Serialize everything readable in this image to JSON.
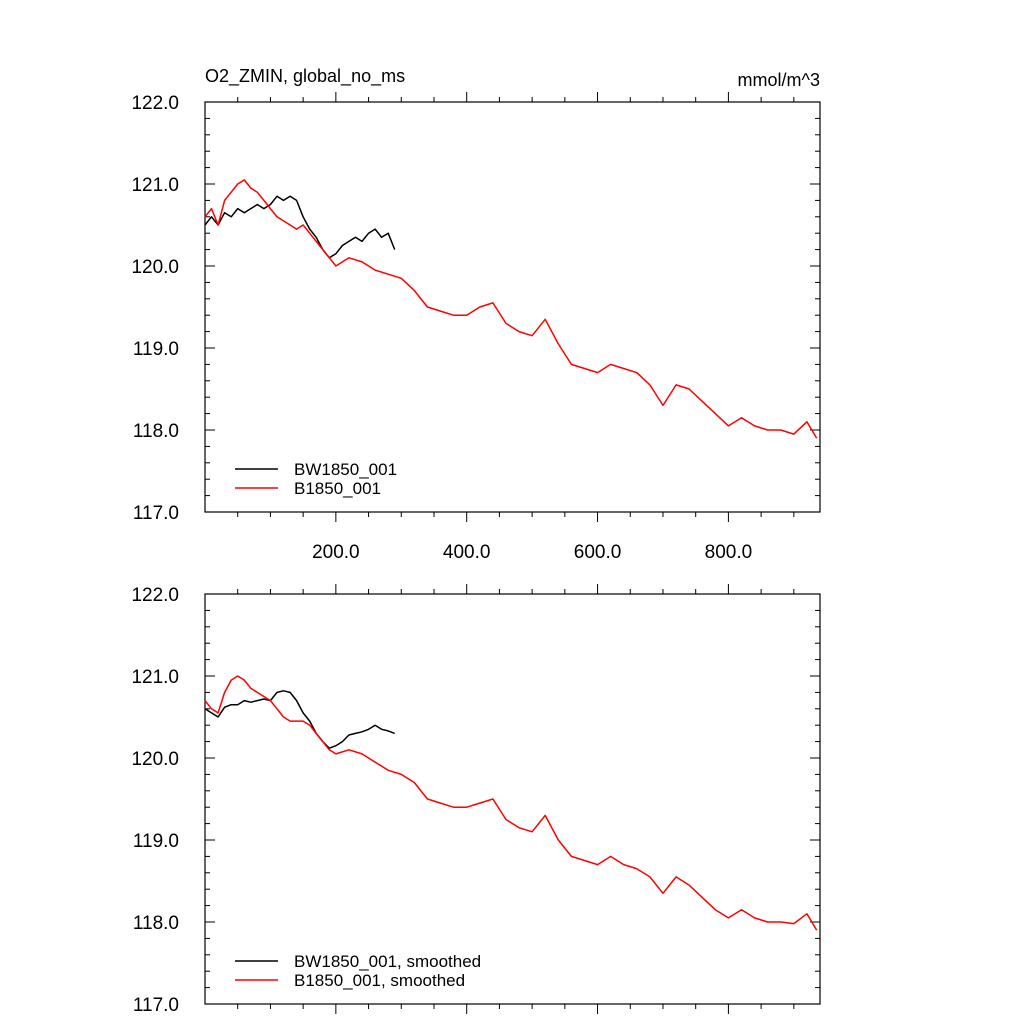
{
  "figure": {
    "title_left": "O2_ZMIN, global_no_ms",
    "title_right": "mmol/m^3"
  },
  "colors": {
    "BW1850_001": "#000000",
    "B1850_001": "#ff0000"
  },
  "chart_data": [
    {
      "type": "line",
      "title": "O2_ZMIN, global_no_ms",
      "unit_label": "mmol/m^3",
      "xlim": [
        0,
        940
      ],
      "ylim": [
        117,
        122
      ],
      "x_tick_labels": [
        "200.0",
        "400.0",
        "600.0",
        "800.0"
      ],
      "x_ticks": [
        200,
        400,
        600,
        800
      ],
      "y_tick_labels": [
        "117.0",
        "118.0",
        "119.0",
        "120.0",
        "121.0",
        "122.0"
      ],
      "y_ticks": [
        117,
        118,
        119,
        120,
        121,
        122
      ],
      "legend": {
        "position": "bottom-left",
        "entries": [
          "BW1850_001",
          "B1850_001"
        ]
      },
      "series": [
        {
          "name": "BW1850_001",
          "color": "#000000",
          "x": [
            0,
            10,
            20,
            30,
            40,
            50,
            60,
            70,
            80,
            90,
            100,
            110,
            120,
            130,
            140,
            150,
            160,
            170,
            180,
            190,
            200,
            210,
            220,
            230,
            240,
            250,
            260,
            270,
            280,
            290
          ],
          "y": [
            120.5,
            120.6,
            120.5,
            120.65,
            120.6,
            120.7,
            120.65,
            120.7,
            120.75,
            120.7,
            120.75,
            120.85,
            120.8,
            120.85,
            120.8,
            120.6,
            120.45,
            120.35,
            120.2,
            120.1,
            120.15,
            120.25,
            120.3,
            120.35,
            120.3,
            120.4,
            120.45,
            120.35,
            120.4,
            120.2
          ]
        },
        {
          "name": "B1850_001",
          "color": "#ff0000",
          "x": [
            0,
            10,
            20,
            30,
            40,
            50,
            60,
            70,
            80,
            90,
            100,
            110,
            120,
            130,
            140,
            150,
            160,
            170,
            180,
            190,
            200,
            220,
            240,
            260,
            280,
            300,
            320,
            340,
            360,
            380,
            400,
            420,
            440,
            460,
            480,
            500,
            520,
            540,
            560,
            580,
            600,
            620,
            640,
            660,
            680,
            700,
            720,
            740,
            760,
            780,
            800,
            820,
            840,
            860,
            880,
            900,
            920,
            935
          ],
          "y": [
            120.6,
            120.7,
            120.5,
            120.8,
            120.9,
            121.0,
            121.05,
            120.95,
            120.9,
            120.8,
            120.7,
            120.6,
            120.55,
            120.5,
            120.45,
            120.5,
            120.4,
            120.3,
            120.2,
            120.1,
            120.0,
            120.1,
            120.05,
            119.95,
            119.9,
            119.85,
            119.7,
            119.5,
            119.45,
            119.4,
            119.4,
            119.5,
            119.55,
            119.3,
            119.2,
            119.15,
            119.35,
            119.05,
            118.8,
            118.75,
            118.7,
            118.8,
            118.75,
            118.7,
            118.55,
            118.3,
            118.55,
            118.5,
            118.35,
            118.2,
            118.05,
            118.15,
            118.05,
            118.0,
            118.0,
            117.95,
            118.1,
            117.9
          ]
        }
      ]
    },
    {
      "type": "line",
      "xlim": [
        0,
        940
      ],
      "ylim": [
        117,
        122
      ],
      "x_ticks": [
        200,
        400,
        600,
        800
      ],
      "y_tick_labels": [
        "117.0",
        "118.0",
        "119.0",
        "120.0",
        "121.0",
        "122.0"
      ],
      "y_ticks": [
        117,
        118,
        119,
        120,
        121,
        122
      ],
      "legend": {
        "position": "bottom-left",
        "entries": [
          "BW1850_001, smoothed",
          "B1850_001, smoothed"
        ]
      },
      "series": [
        {
          "name": "BW1850_001, smoothed",
          "color": "#000000",
          "x": [
            0,
            10,
            20,
            30,
            40,
            50,
            60,
            70,
            80,
            90,
            100,
            110,
            120,
            130,
            140,
            150,
            160,
            170,
            180,
            190,
            200,
            210,
            220,
            230,
            240,
            250,
            260,
            270,
            280,
            290
          ],
          "y": [
            120.6,
            120.55,
            120.5,
            120.62,
            120.65,
            120.65,
            120.7,
            120.68,
            120.7,
            120.72,
            120.7,
            120.8,
            120.82,
            120.8,
            120.7,
            120.55,
            120.45,
            120.3,
            120.2,
            120.12,
            120.15,
            120.2,
            120.28,
            120.3,
            120.32,
            120.35,
            120.4,
            120.35,
            120.33,
            120.3
          ]
        },
        {
          "name": "B1850_001, smoothed",
          "color": "#ff0000",
          "x": [
            0,
            10,
            20,
            30,
            40,
            50,
            60,
            70,
            80,
            90,
            100,
            110,
            120,
            130,
            140,
            150,
            160,
            170,
            180,
            190,
            200,
            220,
            240,
            260,
            280,
            300,
            320,
            340,
            360,
            380,
            400,
            420,
            440,
            460,
            480,
            500,
            520,
            540,
            560,
            580,
            600,
            620,
            640,
            660,
            680,
            700,
            720,
            740,
            760,
            780,
            800,
            820,
            840,
            860,
            880,
            900,
            920,
            935
          ],
          "y": [
            120.7,
            120.6,
            120.55,
            120.8,
            120.95,
            121.0,
            120.95,
            120.85,
            120.8,
            120.75,
            120.7,
            120.6,
            120.5,
            120.45,
            120.45,
            120.45,
            120.4,
            120.3,
            120.2,
            120.1,
            120.05,
            120.1,
            120.05,
            119.95,
            119.85,
            119.8,
            119.7,
            119.5,
            119.45,
            119.4,
            119.4,
            119.45,
            119.5,
            119.25,
            119.15,
            119.1,
            119.3,
            119.0,
            118.8,
            118.75,
            118.7,
            118.8,
            118.7,
            118.65,
            118.55,
            118.35,
            118.55,
            118.45,
            118.3,
            118.15,
            118.05,
            118.15,
            118.05,
            118.0,
            118.0,
            117.98,
            118.1,
            117.9
          ]
        }
      ]
    }
  ]
}
